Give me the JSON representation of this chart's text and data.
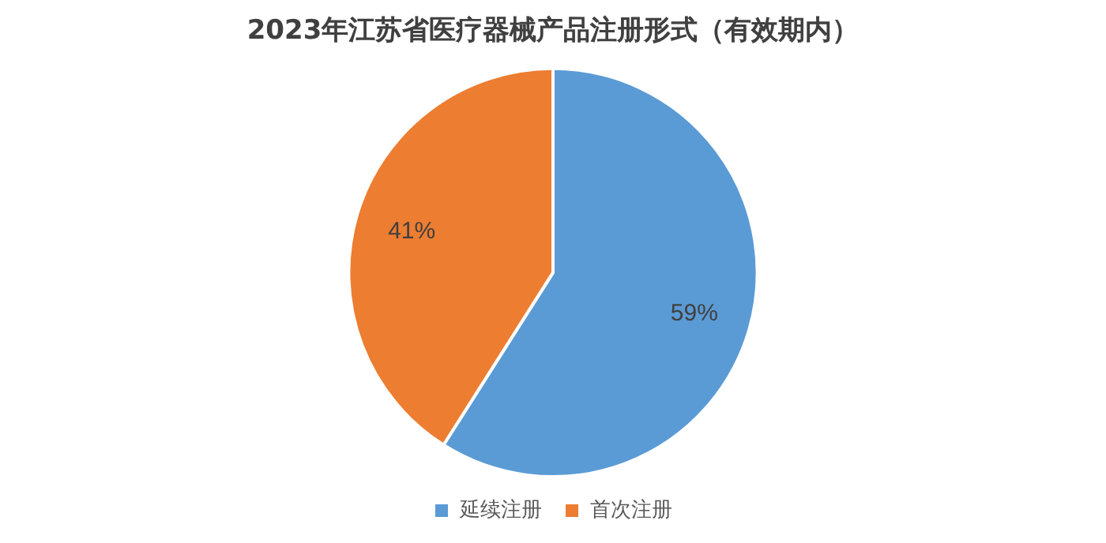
{
  "chart_data": {
    "type": "pie",
    "title": "2023年江苏省医疗器械产品注册形式（有效期内）",
    "categories": [
      "延续注册",
      "首次注册"
    ],
    "values": [
      59,
      41
    ],
    "colors": [
      "#5b9bd5",
      "#ed7d31"
    ],
    "value_labels": [
      "59%",
      "41%"
    ],
    "legend": "bottom"
  }
}
